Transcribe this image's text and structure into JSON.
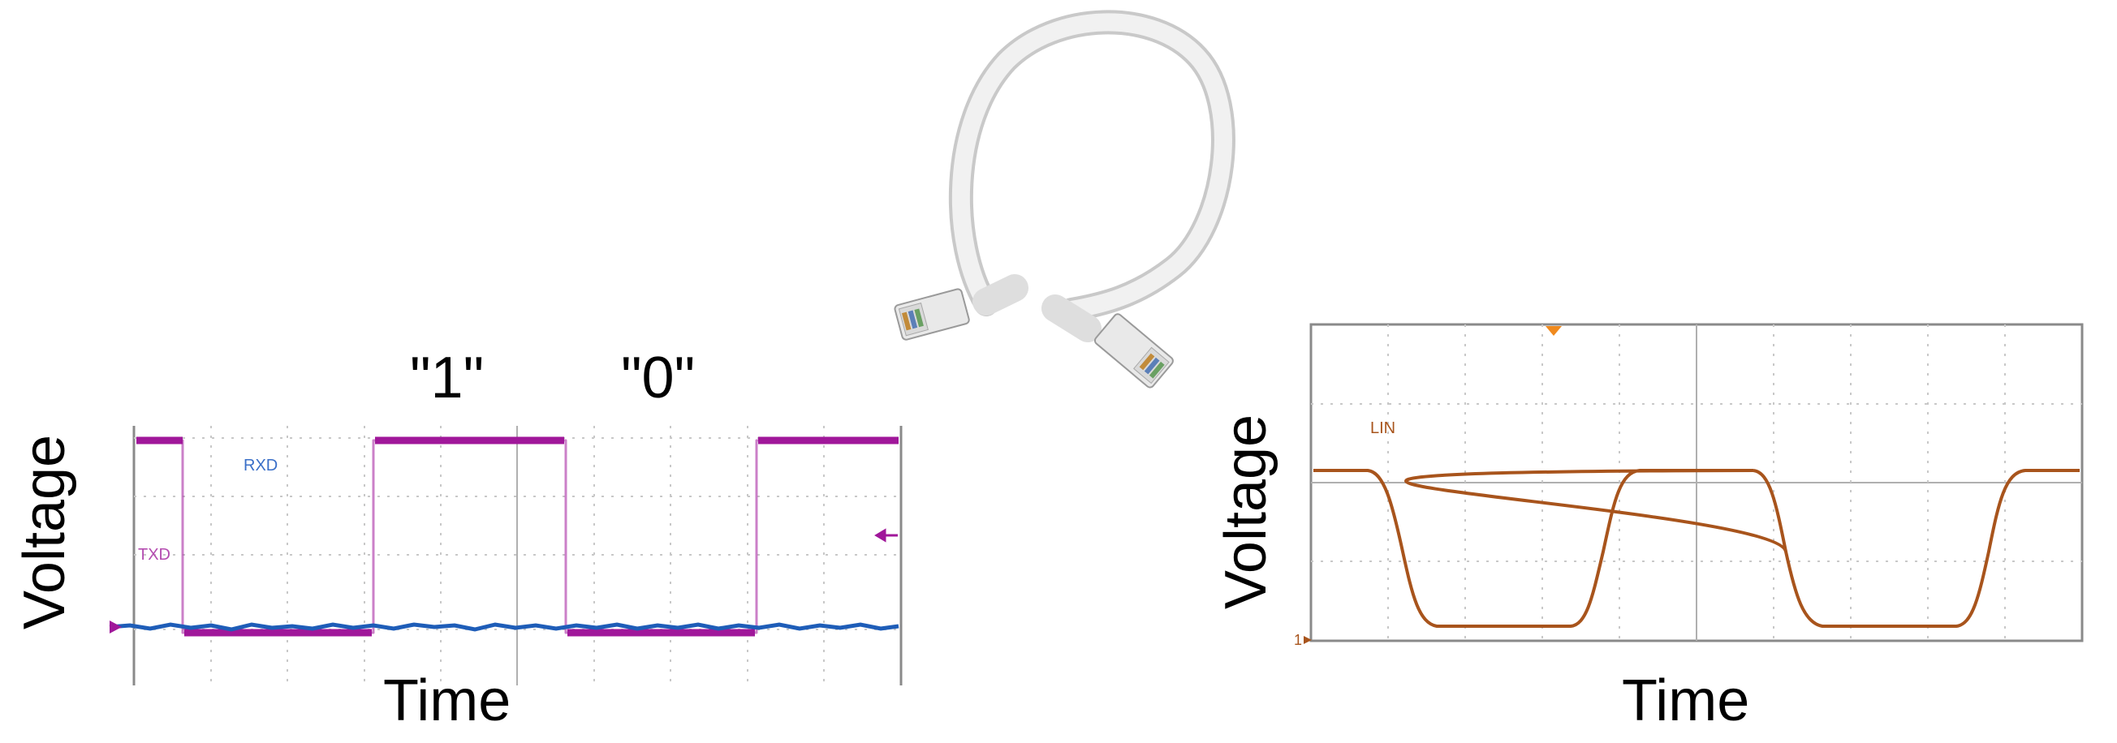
{
  "left_scope": {
    "y_axis_label": "Voltage",
    "x_axis_label": "Time",
    "bit_one_label": "\"1\"",
    "bit_zero_label": "\"0\"",
    "channel_rx_label": "RXD",
    "channel_tx_label": "TXD",
    "tx_color": "#a0179a",
    "rx_color": "#1e5db8"
  },
  "right_scope": {
    "y_axis_label": "Voltage",
    "x_axis_label": "Time",
    "channel_label": "LIN",
    "ground_marker": "1",
    "trace_color": "#a8541c",
    "trigger_color": "#f08a1e"
  },
  "cable": {
    "icon": "ethernet-cable-icon",
    "jacket_color": "#f1f1f1"
  }
}
